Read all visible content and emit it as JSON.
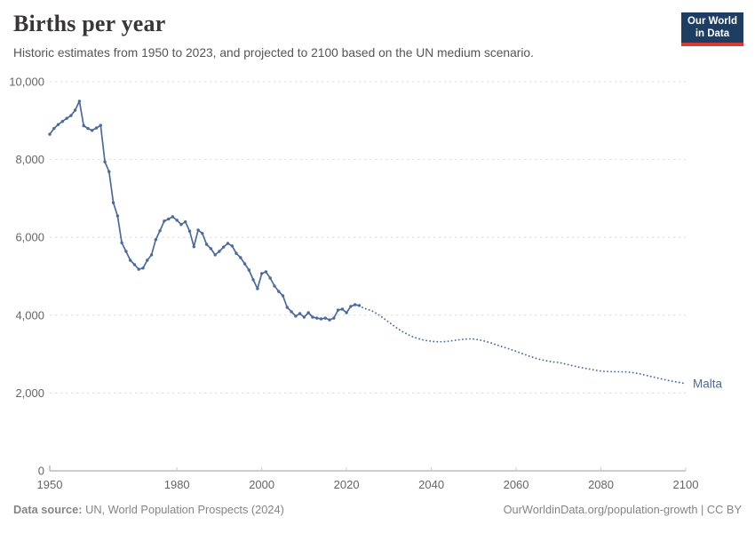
{
  "header": {
    "title": "Births per year",
    "subtitle": "Historic estimates from 1950 to 2023, and projected to 2100 based on the UN medium scenario.",
    "logo": {
      "line1": "Our World",
      "line2": "in Data"
    }
  },
  "footer": {
    "source_label": "Data source:",
    "source_text": " UN, World Population Prospects (2024)",
    "link_text": "OurWorldinData.org/population-growth | CC BY"
  },
  "colors": {
    "line": "#4c6a9c",
    "entity_label": "#4c6a9c",
    "logo_bg": "#1d3d63",
    "logo_underline": "#d73c34",
    "grid": "#dddddd",
    "axis": "#999999",
    "tick_text": "#666666"
  },
  "chart_data": {
    "type": "line",
    "title": "Births per year",
    "entity": "Malta",
    "xlabel": "",
    "ylabel": "",
    "xlim": [
      1950,
      2100
    ],
    "ylim": [
      0,
      10000
    ],
    "x_ticks": [
      1950,
      1980,
      2000,
      2020,
      2040,
      2060,
      2080,
      2100
    ],
    "y_ticks": [
      0,
      2000,
      4000,
      6000,
      8000,
      10000
    ],
    "grid": true,
    "legend_position": "end-of-line-label",
    "series": [
      {
        "name": "Malta — historic estimates",
        "style": "solid",
        "markers": true,
        "years": [
          1950,
          1951,
          1952,
          1953,
          1954,
          1955,
          1956,
          1957,
          1958,
          1959,
          1960,
          1961,
          1962,
          1963,
          1964,
          1965,
          1966,
          1967,
          1968,
          1969,
          1970,
          1971,
          1972,
          1973,
          1974,
          1975,
          1976,
          1977,
          1978,
          1979,
          1980,
          1981,
          1982,
          1983,
          1984,
          1985,
          1986,
          1987,
          1988,
          1989,
          1990,
          1991,
          1992,
          1993,
          1994,
          1995,
          1996,
          1997,
          1998,
          1999,
          2000,
          2001,
          2002,
          2003,
          2004,
          2005,
          2006,
          2007,
          2008,
          2009,
          2010,
          2011,
          2012,
          2013,
          2014,
          2015,
          2016,
          2017,
          2018,
          2019,
          2020,
          2021,
          2022,
          2023
        ],
        "values": [
          8650,
          8800,
          8900,
          8980,
          9060,
          9130,
          9270,
          9500,
          8870,
          8800,
          8750,
          8810,
          8880,
          7940,
          7690,
          6890,
          6550,
          5860,
          5640,
          5410,
          5300,
          5180,
          5210,
          5410,
          5550,
          5940,
          6170,
          6420,
          6470,
          6530,
          6440,
          6330,
          6400,
          6160,
          5760,
          6190,
          6100,
          5820,
          5710,
          5550,
          5640,
          5750,
          5845,
          5780,
          5590,
          5480,
          5320,
          5160,
          4910,
          4680,
          5070,
          5115,
          4955,
          4750,
          4610,
          4500,
          4200,
          4090,
          3975,
          4040,
          3950,
          4065,
          3950,
          3925,
          3905,
          3925,
          3880,
          3925,
          4130,
          4155,
          4065,
          4225,
          4270,
          4250
        ]
      },
      {
        "name": "Malta — UN medium scenario projection",
        "style": "dotted",
        "markers": false,
        "years": [
          2023,
          2024,
          2025,
          2026,
          2027,
          2028,
          2029,
          2030,
          2031,
          2032,
          2033,
          2034,
          2035,
          2036,
          2037,
          2038,
          2039,
          2040,
          2041,
          2042,
          2043,
          2044,
          2045,
          2046,
          2047,
          2048,
          2049,
          2050,
          2051,
          2052,
          2053,
          2054,
          2055,
          2056,
          2057,
          2058,
          2059,
          2060,
          2061,
          2062,
          2063,
          2064,
          2065,
          2066,
          2067,
          2068,
          2069,
          2070,
          2071,
          2072,
          2073,
          2074,
          2075,
          2076,
          2077,
          2078,
          2079,
          2080,
          2081,
          2082,
          2083,
          2084,
          2085,
          2086,
          2087,
          2088,
          2089,
          2090,
          2091,
          2092,
          2093,
          2094,
          2095,
          2096,
          2097,
          2098,
          2099,
          2100
        ],
        "values": [
          4250,
          4180,
          4150,
          4110,
          4050,
          3980,
          3900,
          3820,
          3740,
          3660,
          3590,
          3530,
          3475,
          3430,
          3395,
          3365,
          3345,
          3330,
          3320,
          3315,
          3320,
          3330,
          3345,
          3360,
          3375,
          3385,
          3390,
          3385,
          3370,
          3350,
          3320,
          3290,
          3250,
          3215,
          3180,
          3145,
          3110,
          3070,
          3030,
          2990,
          2950,
          2915,
          2880,
          2855,
          2830,
          2810,
          2795,
          2785,
          2760,
          2735,
          2710,
          2685,
          2660,
          2640,
          2620,
          2600,
          2580,
          2565,
          2555,
          2550,
          2548,
          2546,
          2544,
          2540,
          2530,
          2515,
          2495,
          2470,
          2445,
          2420,
          2395,
          2370,
          2345,
          2320,
          2300,
          2280,
          2260,
          2240
        ]
      }
    ]
  }
}
